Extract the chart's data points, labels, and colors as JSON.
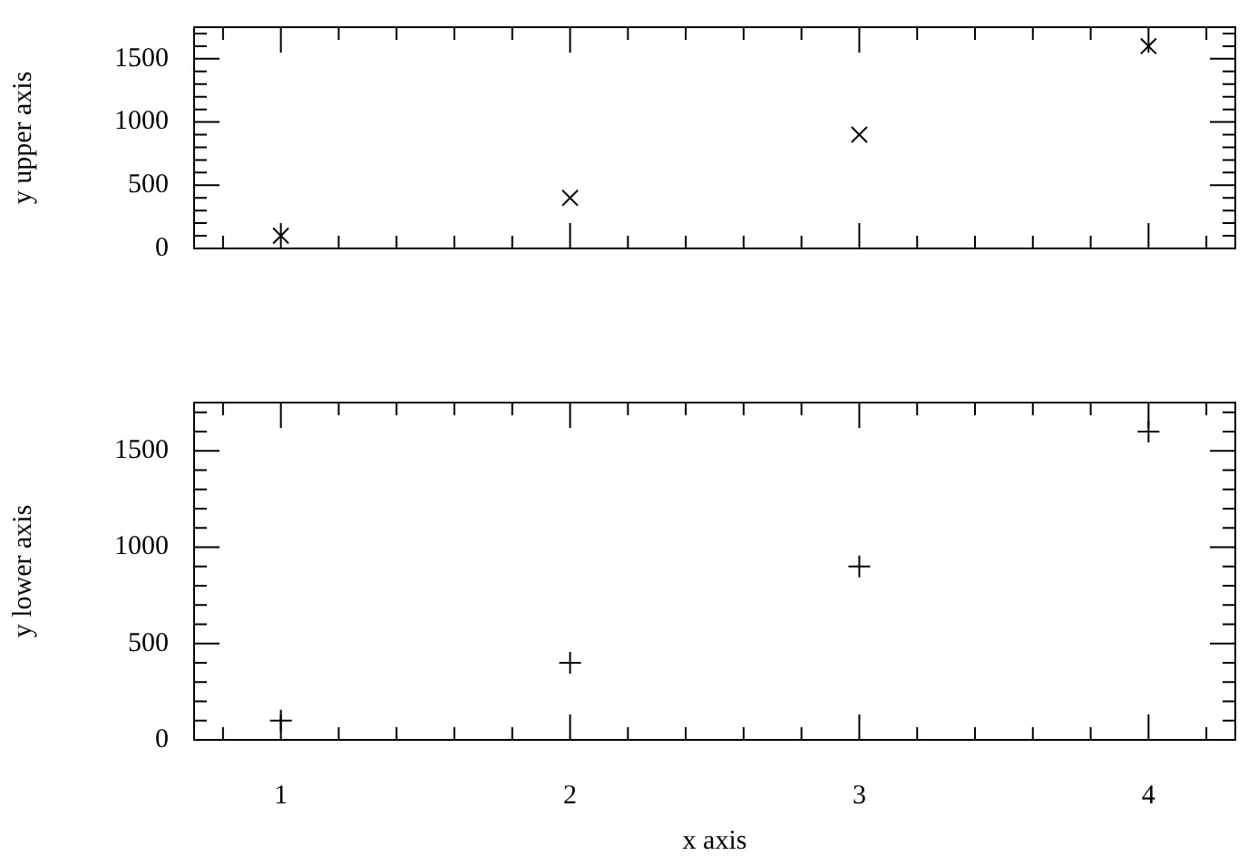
{
  "chart_data": [
    {
      "type": "scatter",
      "x": [
        1,
        2,
        3,
        4
      ],
      "series": [
        {
          "color": "#000000",
          "values": [
            100,
            400,
            900,
            1600
          ]
        }
      ],
      "ylabel": "y upper axis",
      "xlim": [
        0.7,
        4.3
      ],
      "xticks": [
        {
          "value": 0.8,
          "label": null
        },
        1,
        {
          "value": 1.2,
          "label": null
        },
        {
          "value": 1.4,
          "label": null
        },
        {
          "value": 1.6,
          "label": null
        },
        {
          "value": 1.8,
          "label": null
        },
        2,
        {
          "value": 2.2,
          "label": null
        },
        {
          "value": 2.4,
          "label": null
        },
        {
          "value": 2.6,
          "label": null
        },
        {
          "value": 2.8,
          "label": null
        },
        3,
        {
          "value": 3.2,
          "label": null
        },
        {
          "value": 3.4,
          "label": null
        },
        {
          "value": 3.6,
          "label": null
        },
        {
          "value": 3.8,
          "label": null
        },
        4,
        {
          "value": 4.2,
          "label": null
        }
      ],
      "ylim": [
        0,
        1750
      ],
      "yticks": [
        0,
        {
          "value": 100,
          "label": null
        },
        {
          "value": 200,
          "label": null
        },
        {
          "value": 300,
          "label": null
        },
        {
          "value": 400,
          "label": null
        },
        500,
        {
          "value": 600,
          "label": null
        },
        {
          "value": 700,
          "label": null
        },
        {
          "value": 800,
          "label": null
        },
        {
          "value": 900,
          "label": null
        },
        1000,
        {
          "value": 1100,
          "label": null
        },
        {
          "value": 1200,
          "label": null
        },
        {
          "value": 1300,
          "label": null
        },
        {
          "value": 1400,
          "label": null
        },
        1500,
        {
          "value": 1600,
          "label": null
        },
        {
          "value": 1700,
          "label": null
        }
      ],
      "tick_labels": "y",
      "marker": "cross"
    },
    {
      "type": "scatter",
      "x": [
        1,
        2,
        3,
        4
      ],
      "series": [
        {
          "color": "#000000",
          "values": [
            100,
            400,
            900,
            1600
          ]
        }
      ],
      "xlabel": "x axis",
      "ylabel": "y lower axis",
      "xlim": [
        0.7,
        4.3
      ],
      "xticks": [
        {
          "value": 0.8,
          "label": null
        },
        1,
        {
          "value": 1.2,
          "label": null
        },
        {
          "value": 1.4,
          "label": null
        },
        {
          "value": 1.6,
          "label": null
        },
        {
          "value": 1.8,
          "label": null
        },
        2,
        {
          "value": 2.2,
          "label": null
        },
        {
          "value": 2.4,
          "label": null
        },
        {
          "value": 2.6,
          "label": null
        },
        {
          "value": 2.8,
          "label": null
        },
        3,
        {
          "value": 3.2,
          "label": null
        },
        {
          "value": 3.4,
          "label": null
        },
        {
          "value": 3.6,
          "label": null
        },
        {
          "value": 3.8,
          "label": null
        },
        4,
        {
          "value": 4.2,
          "label": null
        }
      ],
      "ylim": [
        0,
        1750
      ],
      "yticks": [
        0,
        {
          "value": 100,
          "label": null
        },
        {
          "value": 200,
          "label": null
        },
        {
          "value": 300,
          "label": null
        },
        {
          "value": 400,
          "label": null
        },
        500,
        {
          "value": 600,
          "label": null
        },
        {
          "value": 700,
          "label": null
        },
        {
          "value": 800,
          "label": null
        },
        {
          "value": 900,
          "label": null
        },
        1000,
        {
          "value": 1100,
          "label": null
        },
        {
          "value": 1200,
          "label": null
        },
        {
          "value": 1300,
          "label": null
        },
        {
          "value": 1400,
          "label": null
        },
        1500,
        {
          "value": 1600,
          "label": null
        },
        {
          "value": 1700,
          "label": null
        }
      ],
      "marker": "plus"
    }
  ]
}
